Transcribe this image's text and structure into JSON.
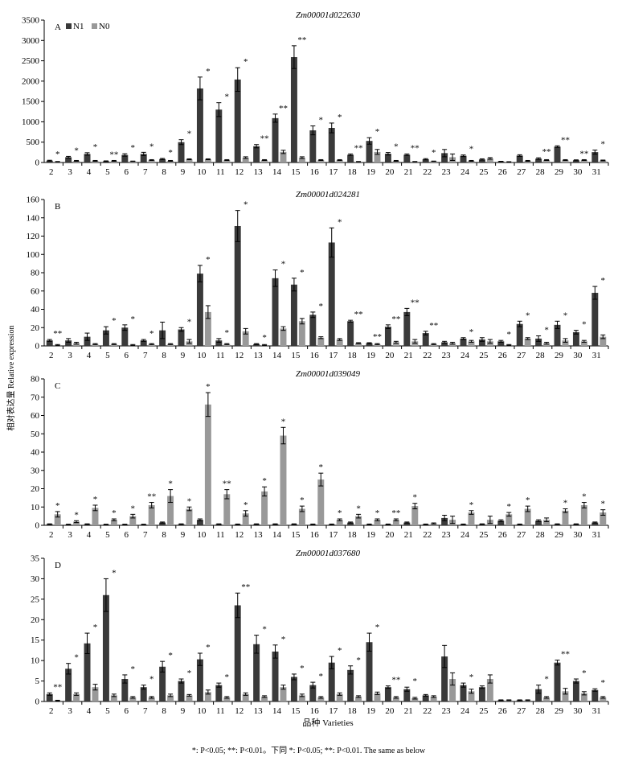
{
  "figure": {
    "ylabel": "相对表达量 Relative expression",
    "xlabel": "品种 Varieties",
    "footnote": "*: P<0.05; **: P<0.01。下同   *: P<0.05; **: P<0.01. The same as below",
    "colors": {
      "N1": "#3a3a3a",
      "N0": "#999999"
    }
  },
  "chart_data": [
    {
      "type": "bar",
      "panel": "A",
      "title": "Zm00001d022630",
      "legend": [
        "N1",
        "N0"
      ],
      "legend_position": "top-left",
      "categories": [
        "2",
        "3",
        "4",
        "5",
        "6",
        "7",
        "8",
        "9",
        "10",
        "11",
        "12",
        "13",
        "14",
        "15",
        "16",
        "17",
        "18",
        "19",
        "20",
        "21",
        "22",
        "23",
        "24",
        "25",
        "26",
        "27",
        "28",
        "29",
        "30",
        "31"
      ],
      "ylim": [
        0,
        3500
      ],
      "yticks": [
        0,
        500,
        1000,
        1500,
        2000,
        2500,
        3000,
        3500
      ],
      "series": [
        {
          "name": "N1",
          "values": [
            45,
            130,
            210,
            30,
            185,
            210,
            85,
            500,
            1820,
            1300,
            2040,
            400,
            1090,
            2590,
            790,
            850,
            190,
            530,
            215,
            190,
            80,
            230,
            165,
            75,
            25,
            170,
            95,
            390,
            55,
            255
          ],
          "errors": [
            10,
            20,
            30,
            10,
            30,
            40,
            15,
            60,
            280,
            170,
            290,
            40,
            100,
            280,
            110,
            120,
            20,
            80,
            30,
            20,
            15,
            90,
            20,
            15,
            5,
            20,
            20,
            20,
            10,
            50
          ]
        },
        {
          "name": "N0",
          "values": [
            20,
            40,
            40,
            40,
            30,
            60,
            40,
            80,
            80,
            60,
            120,
            60,
            260,
            120,
            60,
            60,
            20,
            260,
            40,
            20,
            30,
            130,
            40,
            100,
            15,
            40,
            60,
            60,
            60,
            50
          ],
          "errors": [
            5,
            10,
            10,
            10,
            5,
            10,
            10,
            10,
            10,
            10,
            20,
            10,
            40,
            20,
            10,
            10,
            5,
            60,
            10,
            5,
            5,
            80,
            10,
            20,
            5,
            10,
            10,
            10,
            10,
            10
          ]
        }
      ],
      "sig": [
        "*",
        "*",
        "*",
        "**",
        "*",
        "*",
        "*",
        "*",
        "*",
        "*",
        "*",
        "**",
        "**",
        "**",
        "*",
        "*",
        "**",
        "*",
        "*",
        "**",
        "*",
        "",
        "*",
        "",
        "",
        "",
        "**",
        "**",
        "**",
        "*"
      ]
    },
    {
      "type": "bar",
      "panel": "B",
      "title": "Zm00001d024281",
      "categories": [
        "2",
        "3",
        "4",
        "5",
        "6",
        "7",
        "8",
        "9",
        "10",
        "11",
        "12",
        "13",
        "14",
        "15",
        "16",
        "17",
        "18",
        "19",
        "20",
        "21",
        "22",
        "23",
        "24",
        "25",
        "26",
        "27",
        "28",
        "29",
        "30",
        "31"
      ],
      "ylim": [
        0,
        160
      ],
      "yticks": [
        0,
        20,
        40,
        60,
        80,
        100,
        120,
        140,
        160
      ],
      "series": [
        {
          "name": "N1",
          "values": [
            6,
            6,
            10,
            17,
            20,
            6,
            17,
            18,
            79,
            6,
            131,
            2,
            74,
            67,
            34,
            113,
            27,
            3,
            21,
            37,
            14,
            4,
            8,
            7,
            5,
            24,
            8,
            23,
            15,
            58
          ],
          "errors": [
            1,
            2,
            4,
            4,
            3,
            1,
            9,
            2,
            9,
            2,
            17,
            0.5,
            9,
            7,
            3,
            16,
            1,
            0.5,
            2,
            4,
            2,
            1,
            1,
            2,
            1,
            3,
            3,
            4,
            2,
            7
          ]
        },
        {
          "name": "N0",
          "values": [
            1,
            3,
            2,
            2,
            1,
            2,
            2,
            5,
            37,
            2,
            16,
            1,
            19,
            27,
            9,
            7,
            3,
            2,
            4,
            5,
            2,
            3,
            5,
            5,
            1,
            8,
            3,
            6,
            5,
            10
          ],
          "errors": [
            0.5,
            1,
            0.5,
            0.5,
            0.5,
            0.5,
            0.5,
            2,
            7,
            0.5,
            3,
            0.5,
            2,
            3,
            1,
            1,
            0.5,
            0.5,
            1,
            2,
            0.5,
            1,
            1,
            2,
            0.5,
            1,
            1,
            2,
            1,
            2
          ]
        }
      ],
      "sig": [
        "**",
        "",
        "",
        "*",
        "*",
        "*",
        "",
        "*",
        "*",
        "*",
        "*",
        "*",
        "*",
        "*",
        "*",
        "*",
        "**",
        "**",
        "**",
        "**",
        "**",
        "",
        "*",
        "",
        "*",
        "*",
        "*",
        "*",
        "*",
        "*"
      ]
    },
    {
      "type": "bar",
      "panel": "C",
      "title": "Zm00001d039049",
      "categories": [
        "2",
        "3",
        "4",
        "5",
        "6",
        "7",
        "8",
        "9",
        "10",
        "11",
        "12",
        "13",
        "14",
        "15",
        "16",
        "17",
        "18",
        "19",
        "20",
        "21",
        "22",
        "23",
        "24",
        "25",
        "26",
        "27",
        "28",
        "29",
        "30",
        "31"
      ],
      "ylim": [
        0,
        80
      ],
      "yticks": [
        0,
        10,
        20,
        30,
        40,
        50,
        60,
        70,
        80
      ],
      "series": [
        {
          "name": "N1",
          "values": [
            0.6,
            0.4,
            0.6,
            0.4,
            0.4,
            0.4,
            1.5,
            0.6,
            3,
            0.6,
            0.5,
            0.6,
            0.6,
            0.6,
            0.5,
            0.5,
            1.5,
            0.5,
            0.5,
            1.5,
            0.5,
            4,
            0.5,
            0.6,
            2.5,
            0.5,
            2.5,
            0.6,
            0.6,
            1.5
          ],
          "errors": [
            0.2,
            0.2,
            0.2,
            0.2,
            0.2,
            0.2,
            0.3,
            0.2,
            0.5,
            0.2,
            0.2,
            0.2,
            0.2,
            0.2,
            0.2,
            0.2,
            0.3,
            0.2,
            0.2,
            0.3,
            0.2,
            1.5,
            0.2,
            0.2,
            0.5,
            0.2,
            0.5,
            0.2,
            0.2,
            0.3
          ]
        },
        {
          "name": "N0",
          "values": [
            6,
            2,
            9.5,
            3,
            5,
            11,
            16,
            9,
            66,
            17,
            6.5,
            18.5,
            49,
            9,
            25,
            3,
            5,
            3,
            3,
            10.5,
            1,
            3,
            7,
            3,
            6,
            9,
            3,
            8,
            11,
            7
          ],
          "errors": [
            1.5,
            0.5,
            1.5,
            0.5,
            1,
            1.5,
            3.5,
            1,
            6.5,
            2.5,
            1.5,
            2.5,
            4.5,
            1.5,
            3.5,
            0.5,
            1,
            0.5,
            0.5,
            1.5,
            0.3,
            2,
            1,
            2,
            1,
            1.5,
            1,
            1,
            1.5,
            1.5
          ]
        }
      ],
      "sig": [
        "*",
        "*",
        "*",
        "*",
        "*",
        "**",
        "*",
        "*",
        "*",
        "**",
        "*",
        "*",
        "*",
        "*",
        "*",
        "*",
        "*",
        "*",
        "**",
        "*",
        "",
        "",
        "*",
        "",
        "*",
        "*",
        "",
        "*",
        "*",
        "*"
      ]
    },
    {
      "type": "bar",
      "panel": "D",
      "title": "Zm00001d037680",
      "categories": [
        "2",
        "3",
        "4",
        "5",
        "6",
        "7",
        "8",
        "9",
        "10",
        "11",
        "12",
        "13",
        "14",
        "15",
        "16",
        "17",
        "18",
        "19",
        "20",
        "21",
        "22",
        "23",
        "24",
        "25",
        "26",
        "27",
        "28",
        "29",
        "30",
        "31"
      ],
      "ylim": [
        0,
        35
      ],
      "yticks": [
        0,
        5,
        10,
        15,
        20,
        25,
        30,
        35
      ],
      "series": [
        {
          "name": "N1",
          "values": [
            1.8,
            8,
            14.2,
            26,
            5.5,
            3.5,
            8.5,
            5,
            10.3,
            4,
            23.5,
            14,
            12.2,
            6,
            4,
            9.5,
            7.7,
            14.5,
            3.5,
            3,
            1.5,
            11,
            4,
            3.5,
            0.3,
            0.3,
            3,
            9.5,
            5,
            2.8
          ],
          "errors": [
            0.3,
            1.3,
            2.5,
            4,
            1,
            0.5,
            1.3,
            0.5,
            1.5,
            0.5,
            3,
            2.2,
            1.6,
            0.7,
            0.7,
            1.5,
            1,
            2.2,
            0.3,
            0.5,
            0.2,
            2.7,
            0.5,
            0.3,
            0.1,
            0.1,
            1,
            0.6,
            0.5,
            0.3
          ]
        },
        {
          "name": "N0",
          "values": [
            0.2,
            1.8,
            3.5,
            1.5,
            1,
            1,
            1.5,
            1.5,
            2.3,
            1,
            1.8,
            1.2,
            3.5,
            1.5,
            1,
            1.8,
            1.2,
            2,
            1,
            0.8,
            1.2,
            5.5,
            2.5,
            5.5,
            0.3,
            0.3,
            1,
            2.5,
            2,
            1
          ],
          "errors": [
            0.1,
            0.3,
            0.7,
            0.3,
            0.2,
            0.2,
            0.3,
            0.2,
            0.5,
            0.2,
            0.3,
            0.2,
            0.5,
            0.3,
            0.2,
            0.3,
            0.2,
            0.3,
            0.2,
            0.2,
            0.2,
            1.5,
            0.5,
            1,
            0.1,
            0.1,
            0.2,
            0.7,
            0.4,
            0.2
          ]
        }
      ],
      "sig": [
        "**",
        "*",
        "*",
        "*",
        "*",
        "*",
        "*",
        "*",
        "*",
        "*",
        "**",
        "*",
        "*",
        "*",
        "*",
        "*",
        "*",
        "*",
        "**",
        "*",
        "",
        "",
        "*",
        "",
        "",
        "",
        "*",
        "**",
        "*",
        "*"
      ]
    }
  ]
}
